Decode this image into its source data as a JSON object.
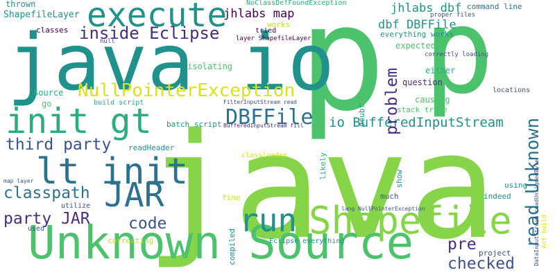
{
  "colors": {
    "background": "#ffffff",
    "teal": "#21918c",
    "green": "#4cc26c",
    "lime": "#86d549",
    "yellow_green": "#bddf26",
    "blue": "#2c728e",
    "slate": "#3b528b",
    "indigo": "#472d7b",
    "purple": "#440154",
    "aqua": "#29af7f",
    "yellow": "#d8e219"
  },
  "words": [
    "p",
    "p",
    "java",
    "java io",
    "Unknown Source",
    "Shapefile",
    "execute",
    "init gt",
    "lt init",
    "JAR",
    "run",
    "read Unknown",
    "NullPointerException",
    "DBFFile",
    "inside Eclipse",
    "io BufferedInputStream",
    "third party",
    "classpath",
    "party JAR",
    "code",
    "pre",
    "checked",
    "problem",
    "jhlabs map",
    "jhlabs dbf",
    "dbf DBFFile",
    "ShapefileLayer",
    "thrown",
    "Source",
    "go",
    "classes",
    "NoClassDefFoundException",
    "command line",
    "proper files",
    "everything works",
    "correctly loading",
    "expected",
    "either",
    "question",
    "causing",
    "stack trace",
    "isolating",
    "works",
    "null",
    "tried",
    "layer ShapefileLayer",
    "build script",
    "batch script",
    "readHeader",
    "classloader",
    "likely",
    "doubt",
    "show",
    "much",
    "fine",
    "utilize",
    "used",
    "map layer",
    "correcting",
    "compiled",
    "Eclipse everything",
    "project",
    "indeed",
    "using",
    "locations",
    "FilterInputStream read",
    "BufferedInputStream fill",
    "lang NullPointerException",
    "DataInputStream readUnsignedByte",
    "Ant build"
  ]
}
